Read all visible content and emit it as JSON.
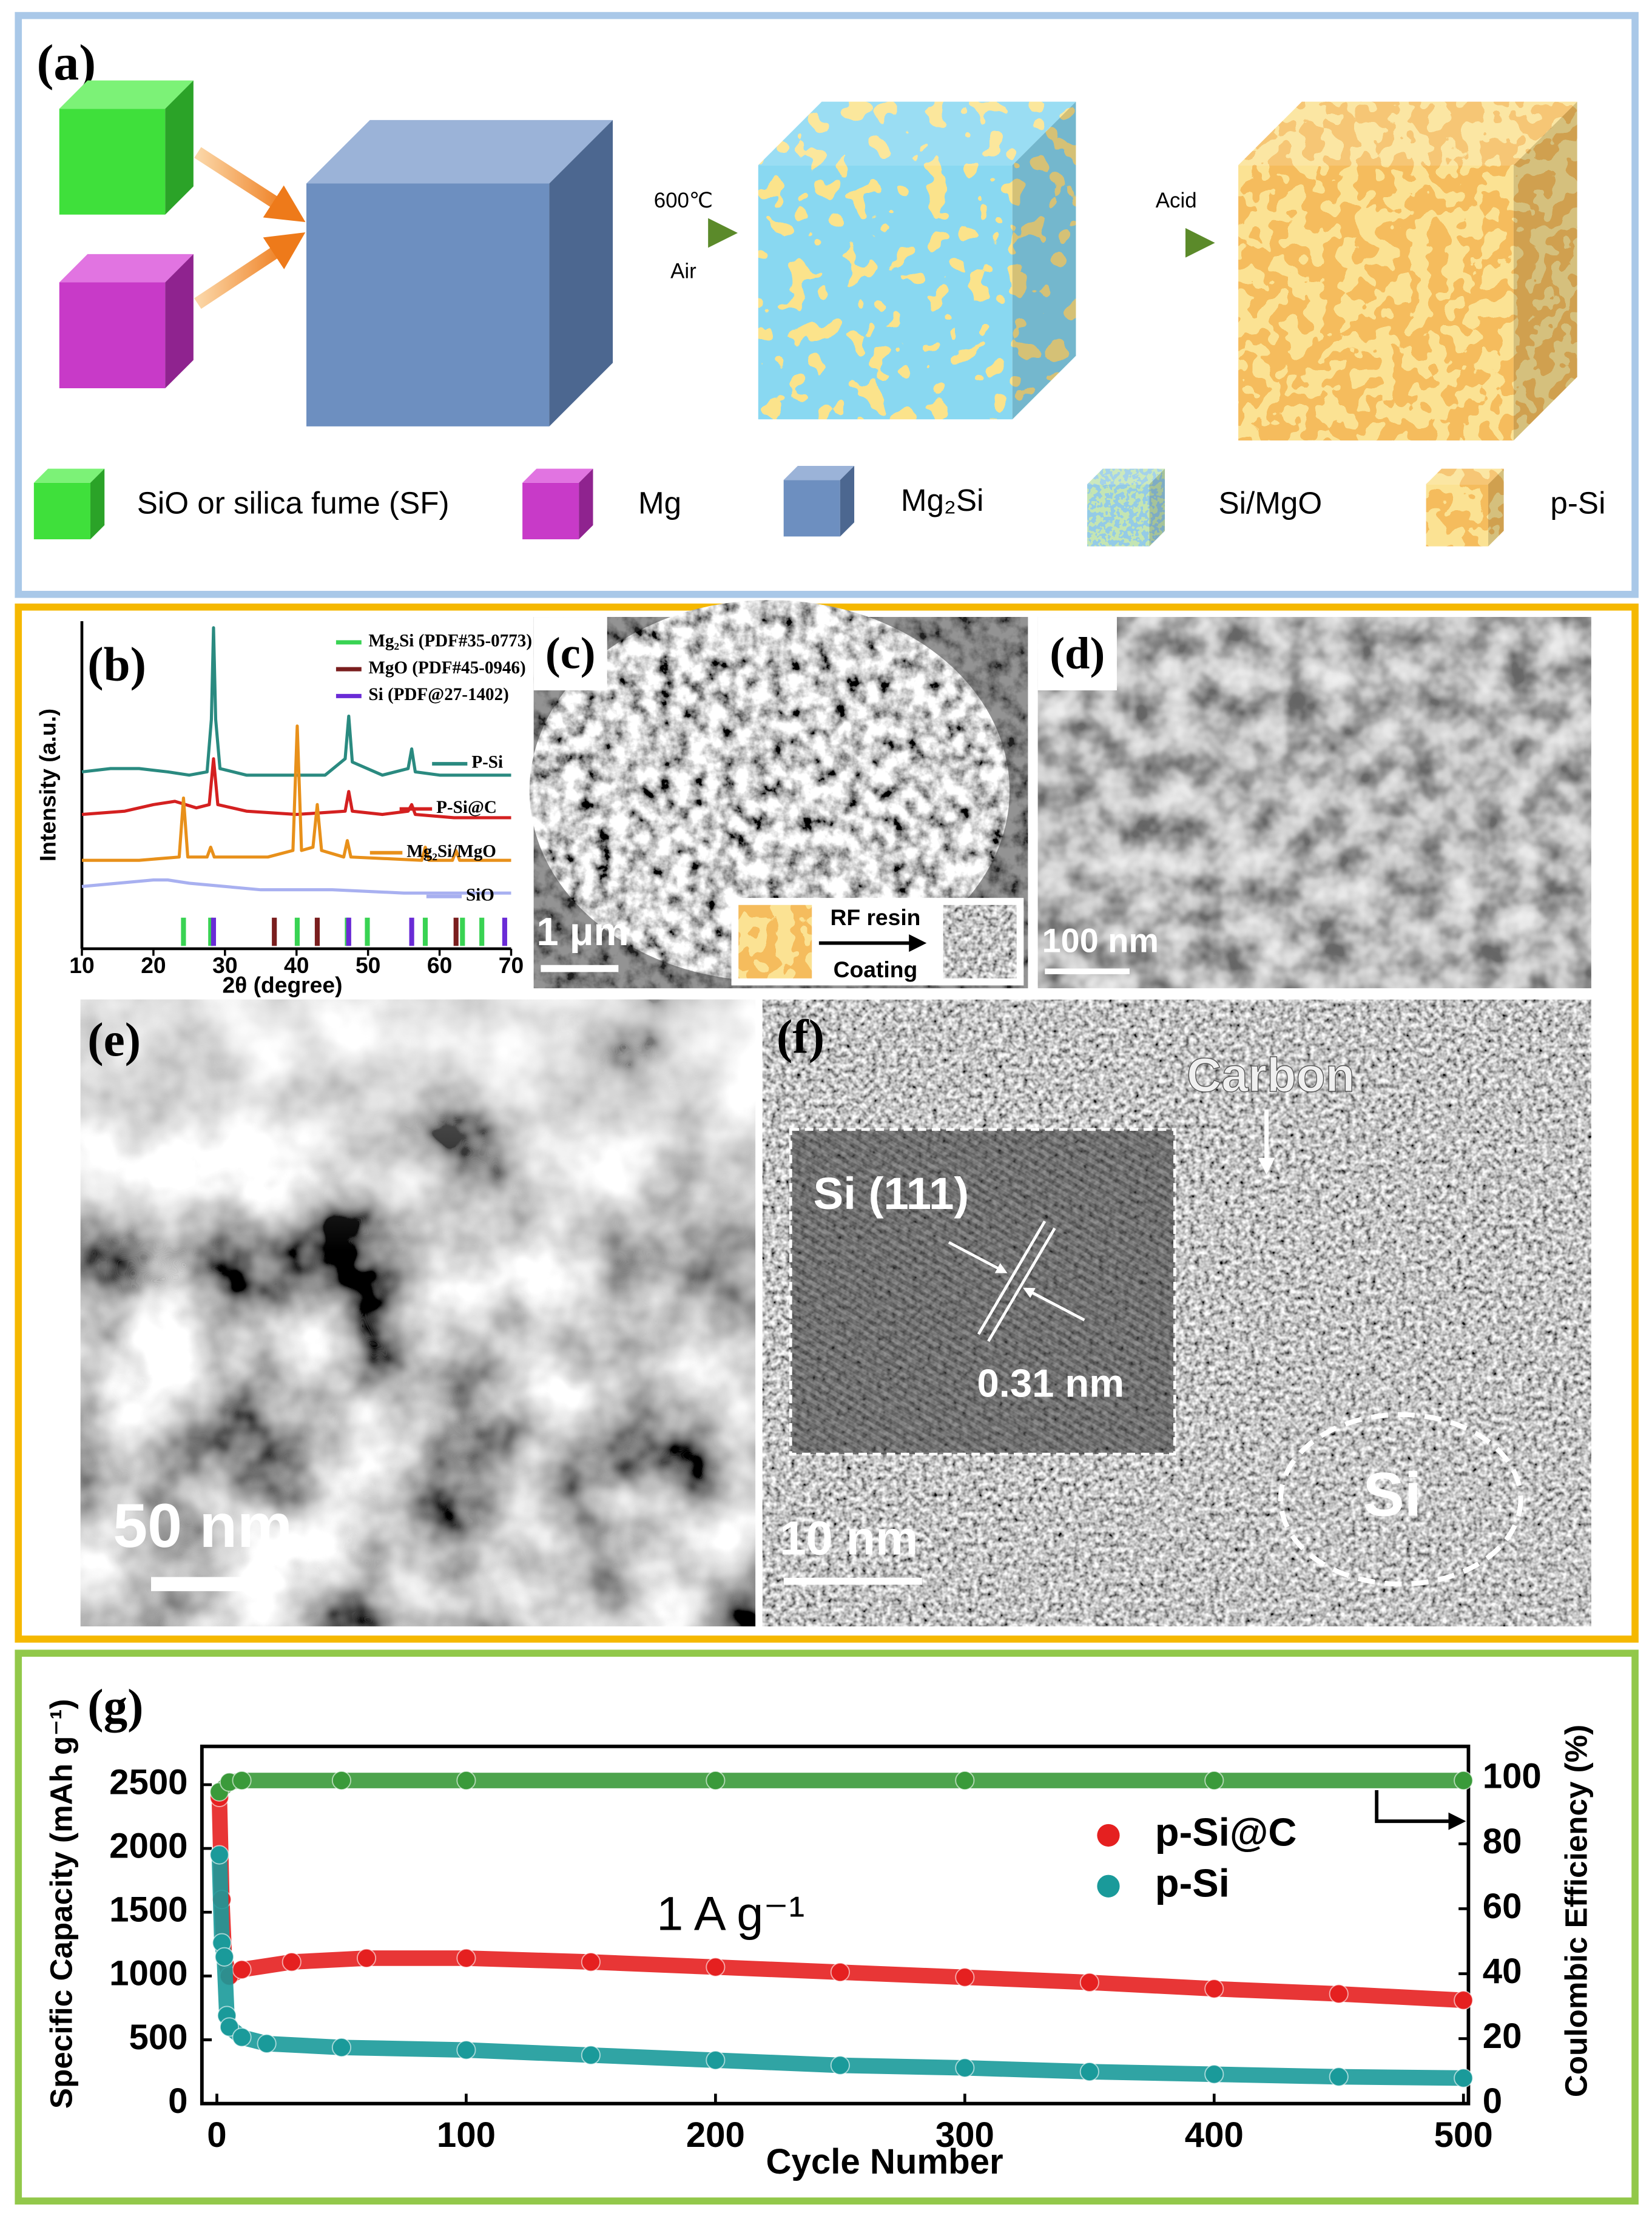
{
  "panel_a": {
    "label": "(a)",
    "step1_top": "600℃",
    "step1_bottom": "Air",
    "step2": "Acid",
    "legend": [
      "SiO or silica fume (SF)",
      "Mg",
      "Mg₂Si",
      "Si/MgO",
      "p-Si"
    ]
  },
  "chart_data": [
    {
      "type": "line",
      "panel_label": "(b)",
      "xlabel": "2θ (degree)",
      "ylabel": "Intensity (a.u.)",
      "xlim": [
        10,
        70
      ],
      "xticks": [
        10,
        20,
        30,
        40,
        50,
        60,
        70
      ],
      "ylim": [
        0,
        100
      ],
      "series": [
        {
          "name": "P-Si",
          "color": "#2a8a80",
          "x": [
            10,
            14,
            18,
            22,
            25,
            27.5,
            28.1,
            28.4,
            28.7,
            29.3,
            33,
            38,
            44,
            46.8,
            47.3,
            47.8,
            52,
            55.6,
            56.1,
            56.6,
            60,
            65,
            70
          ],
          "values": [
            54,
            55,
            55,
            54,
            53,
            54,
            70,
            98,
            70,
            55,
            53,
            53,
            53,
            58,
            71,
            57,
            53,
            55,
            61,
            54,
            53,
            53,
            53
          ]
        },
        {
          "name": "P-Si@C",
          "color": "#d42020",
          "x": [
            10,
            16,
            20,
            23,
            26,
            27.8,
            28.4,
            29,
            33,
            40,
            46.8,
            47.3,
            47.8,
            52,
            55.6,
            56.1,
            56.6,
            62,
            70
          ],
          "values": [
            41,
            42,
            44,
            45,
            43,
            44,
            58,
            44,
            42,
            41,
            42,
            48,
            42,
            41,
            42,
            44,
            41,
            40,
            40
          ]
        },
        {
          "name": "Mg₂Si/MgO",
          "color": "#e8901a",
          "x": [
            10,
            18,
            23.6,
            24.2,
            24.8,
            27.5,
            28,
            28.5,
            36,
            39.5,
            40.1,
            40.7,
            42.3,
            42.9,
            43.5,
            46.6,
            47.1,
            47.6,
            57.5,
            58,
            58.5,
            61.8,
            62.3,
            62.8,
            70
          ],
          "values": [
            27,
            27,
            28,
            46,
            28,
            28,
            31,
            28,
            28,
            30,
            68,
            30,
            31,
            44,
            30,
            28,
            33,
            28,
            27,
            31,
            27,
            27,
            30,
            27,
            27
          ]
        },
        {
          "name": "SiO",
          "color": "#a8b0f0",
          "x": [
            10,
            15,
            20,
            22,
            25,
            30,
            35,
            45,
            55,
            70
          ],
          "values": [
            19,
            20,
            21,
            21,
            20,
            19,
            18,
            18,
            17,
            17
          ]
        }
      ],
      "reference_peaks": [
        {
          "name": "Mg₂Si (PDF#35-0773)",
          "color": "#39d353",
          "positions": [
            24.2,
            28.0,
            40.1,
            47.1,
            49.9,
            58.0,
            63.2,
            65.9
          ]
        },
        {
          "name": "MgO (PDF#45-0946)",
          "color": "#7a1e1e",
          "positions": [
            36.9,
            42.9,
            62.3
          ]
        },
        {
          "name": "Si (PDF@27-1402)",
          "color": "#6a2bd6",
          "positions": [
            28.4,
            47.3,
            56.1,
            69.1
          ]
        }
      ]
    },
    {
      "type": "scatter",
      "panel_label": "(g)",
      "xlabel": "Cycle Number",
      "ylabel": "Specific Capacity (mAh g⁻¹)",
      "y2label": "Coulombic Efficiency (%)",
      "annotation": "1 A g⁻¹",
      "xlim": [
        -6,
        502
      ],
      "xticks": [
        0,
        100,
        200,
        300,
        400,
        500
      ],
      "ylim": [
        0,
        2800
      ],
      "yticks": [
        0,
        500,
        1000,
        1500,
        2000,
        2500
      ],
      "y2lim": [
        0,
        110
      ],
      "y2ticks": [
        0,
        20,
        40,
        60,
        80,
        100
      ],
      "series": [
        {
          "name": "p-Si@C",
          "color": "#e52020",
          "x": [
            1,
            2,
            3,
            5,
            10,
            30,
            60,
            100,
            150,
            200,
            250,
            300,
            350,
            400,
            450,
            500
          ],
          "values": [
            2400,
            1600,
            1150,
            1000,
            1050,
            1110,
            1140,
            1140,
            1110,
            1070,
            1030,
            990,
            950,
            900,
            860,
            810
          ]
        },
        {
          "name": "p-Si",
          "color": "#1a9a9a",
          "x": [
            1,
            2,
            3,
            4,
            5,
            10,
            20,
            50,
            100,
            150,
            200,
            250,
            300,
            350,
            400,
            450,
            500
          ],
          "values": [
            1950,
            1260,
            1150,
            690,
            600,
            520,
            470,
            440,
            420,
            380,
            340,
            300,
            280,
            250,
            230,
            210,
            200
          ]
        },
        {
          "color": "#3a9a3a",
          "axis": "y2",
          "x": [
            1,
            5,
            10,
            50,
            100,
            200,
            300,
            400,
            500
          ],
          "values": [
            96,
            99,
            99.5,
            99.5,
            99.5,
            99.5,
            99.5,
            99.5,
            99.5
          ]
        }
      ]
    }
  ],
  "panel_c": {
    "label": "(c)",
    "scale_bar": "1 μm",
    "inset_top": "RF resin",
    "inset_bottom": "Coating"
  },
  "panel_d": {
    "label": "(d)",
    "scale_bar": "100 nm"
  },
  "panel_e": {
    "label": "(e)",
    "scale_bar": "50 nm"
  },
  "panel_f": {
    "label": "(f)",
    "carbon": "Carbon",
    "inset_label": "Si (111)",
    "spacing": "0.31 nm",
    "scale_bar": "10 nm",
    "core": "Si"
  }
}
